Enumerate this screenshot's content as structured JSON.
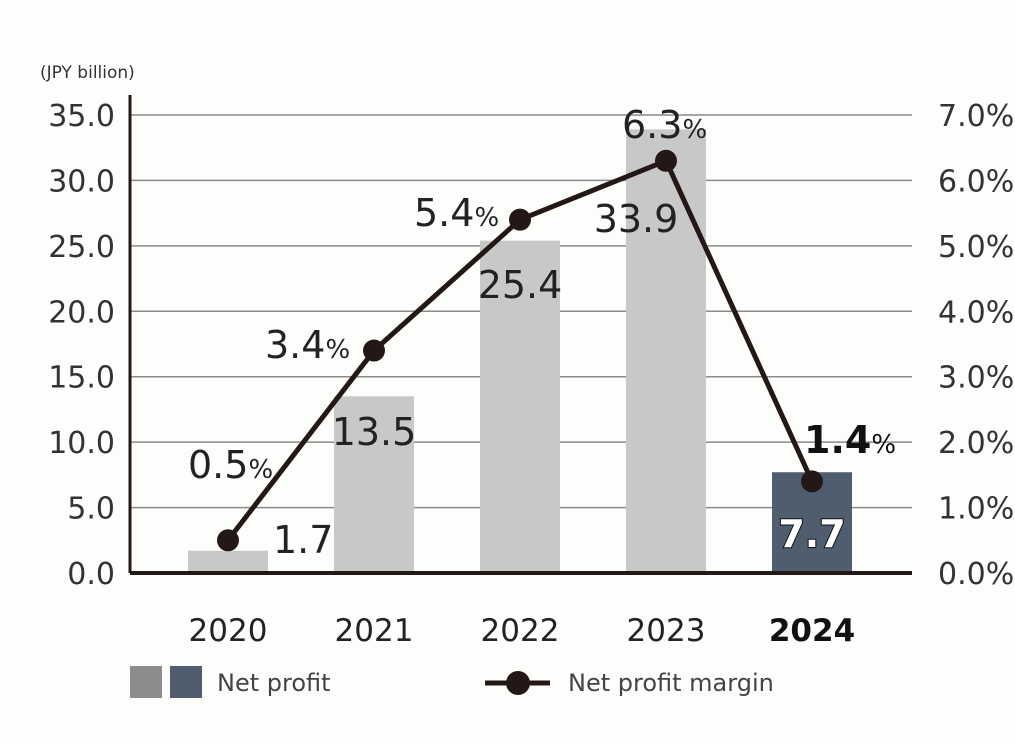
{
  "chart_data": {
    "type": "bar",
    "unit_label": "(JPY billion)",
    "categories": [
      "2020",
      "2021",
      "2022",
      "2023",
      "2024"
    ],
    "highlight_category": "2024",
    "series": [
      {
        "name": "Net profit",
        "kind": "bar",
        "axis": "left",
        "values": [
          1.7,
          13.5,
          25.4,
          33.9,
          7.7
        ],
        "labels": [
          "1.7",
          "13.5",
          "25.4",
          "33.9",
          "7.7"
        ]
      },
      {
        "name": "Net profit margin",
        "kind": "line",
        "axis": "right",
        "values": [
          0.5,
          3.4,
          5.4,
          6.3,
          1.4
        ],
        "labels": [
          "0.5",
          "3.4",
          "5.4",
          "6.3",
          "1.4"
        ],
        "label_suffix": "%"
      }
    ],
    "y_left": {
      "min": 0,
      "max": 35,
      "ticks": [
        "0.0",
        "5.0",
        "10.0",
        "15.0",
        "20.0",
        "25.0",
        "30.0",
        "35.0"
      ]
    },
    "y_right": {
      "min": 0,
      "max": 7,
      "ticks": [
        "0.0%",
        "1.0%",
        "2.0%",
        "3.0%",
        "4.0%",
        "5.0%",
        "6.0%",
        "7.0%"
      ]
    },
    "grid": true,
    "legend_placement": "bottom",
    "colors": {
      "bar": "#c8c8c8",
      "bar_highlight": "#4f5d6e",
      "legend_bar": "#8c8c8c",
      "line": "#231815",
      "grid": "#8a8a8a",
      "axis": "#231815"
    }
  }
}
